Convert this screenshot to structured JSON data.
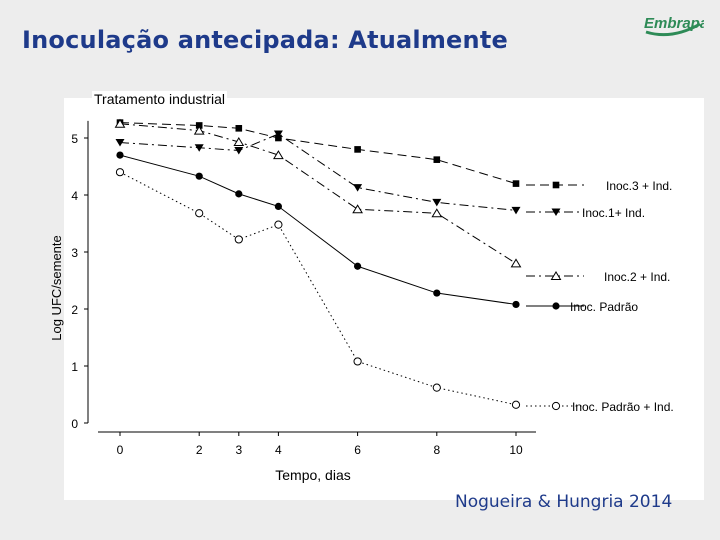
{
  "slide": {
    "title": "Inoculação antecipada: Atualmente",
    "logo_text": "Embrapa",
    "credit": "Nogueira & Hungria 2014",
    "accent_color": "#1e3a8a",
    "logo_color": "#2e8b57"
  },
  "chart_data": {
    "type": "line",
    "title": "Tratamento industrial",
    "xlabel": "Tempo, dias",
    "ylabel": "Log UFC/semente",
    "x_ticks": [
      0,
      2,
      3,
      4,
      6,
      8,
      10
    ],
    "y_ticks": [
      0,
      1,
      2,
      3,
      4,
      5
    ],
    "xlim": [
      0,
      10
    ],
    "ylim": [
      0,
      5.3
    ],
    "grid": false,
    "legend": "right, inline at line ends",
    "series": [
      {
        "name": "Inoc.3 + Ind.",
        "marker": "square-filled",
        "line": "dashed",
        "x": [
          0,
          2,
          3,
          4,
          6,
          8,
          10
        ],
        "y": [
          5.27,
          5.22,
          5.17,
          5.0,
          4.8,
          4.62,
          4.2
        ]
      },
      {
        "name": "Inoc.1+ Ind.",
        "marker": "triangle-down-filled",
        "line": "dash-dot",
        "x": [
          0,
          2,
          3,
          4,
          6,
          8,
          10
        ],
        "y": [
          4.92,
          4.83,
          4.78,
          5.07,
          4.13,
          3.87,
          3.73
        ]
      },
      {
        "name": "Inoc.2 + Ind.",
        "marker": "triangle-up-open",
        "line": "dash-dot",
        "x": [
          0,
          2,
          3,
          4,
          6,
          8,
          10
        ],
        "y": [
          5.25,
          5.13,
          4.93,
          4.7,
          3.75,
          3.68,
          2.8
        ]
      },
      {
        "name": "Inoc. Padrão",
        "marker": "circle-filled",
        "line": "solid",
        "x": [
          0,
          2,
          3,
          4,
          6,
          8,
          10
        ],
        "y": [
          4.7,
          4.33,
          4.02,
          3.8,
          2.75,
          2.28,
          2.08
        ]
      },
      {
        "name": "Inoc. Padrão + Ind.",
        "marker": "circle-open",
        "line": "dotted",
        "x": [
          0,
          2,
          3,
          4,
          6,
          8,
          10
        ],
        "y": [
          4.4,
          3.68,
          3.22,
          3.48,
          1.08,
          0.62,
          0.32
        ]
      }
    ]
  }
}
